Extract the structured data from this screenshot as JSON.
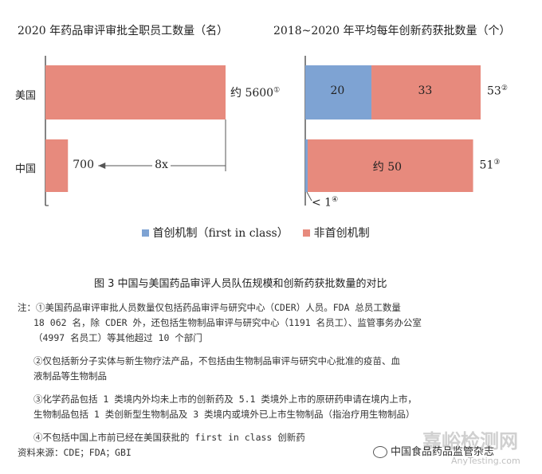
{
  "colors": {
    "blue": "#7ea3d3",
    "pink": "#e78a7d",
    "axis": "#333333"
  },
  "chart_data": [
    {
      "type": "bar",
      "orientation": "horizontal",
      "title": "2020 年药品审评审批全职员工数量（名）",
      "categories": [
        "美国",
        "中国"
      ],
      "values": [
        5600,
        700
      ],
      "value_labels": [
        "约 5600",
        "700"
      ],
      "value_label_notes": [
        "①",
        ""
      ],
      "comparison_label": "8x"
    },
    {
      "type": "bar",
      "orientation": "horizontal",
      "stacked": true,
      "title": "2018~2020 年平均每年创新药获批数量（个）",
      "categories": [
        "美国",
        "中国"
      ],
      "series": [
        {
          "name": "首创机制（first in class）",
          "values": [
            20,
            1
          ],
          "labels": [
            "20",
            "< 1"
          ],
          "label_notes": [
            "",
            "④"
          ]
        },
        {
          "name": "非首创机制",
          "values": [
            33,
            50
          ],
          "labels": [
            "33",
            "约 50"
          ]
        }
      ],
      "totals": [
        "53",
        "51"
      ],
      "total_notes": [
        "②",
        "③"
      ]
    }
  ],
  "caption": "图 3    中国与美国药品审评人员队伍规模和创新药获批数量的对比",
  "notes": {
    "prefix": "注：",
    "n1": [
      "①美国药品审评审批人员数量仅包括药品审评与研究中心（CDER）人员。FDA 总员工数量",
      "18 062 名，除 CDER 外，还包括生物制品审评与研究中心（1191 名员工）、监管事务办公室",
      "（4997 名员工）等其他超过 10 个部门"
    ],
    "n2": [
      "②仅包括新分子实体与新生物疗法产品，不包括由生物制品审评与研究中心批准的疫苗、血",
      "液制品等生物制品"
    ],
    "n3": [
      "③化学药品包括 1 类境内外均未上市的创新药及 5.1 类境外上市的原研药申请在境内上市，",
      "生物制品包括 1 类创新型生物制品及 3 类境内或境外已上市生物制品（指治疗用生物制品）"
    ],
    "n4": "④不包括中国上市前已经在美国获批的 first in class 创新药",
    "source": "资料来源：CDE；FDA；GBI"
  },
  "watermark": {
    "main": "嘉峪检测网",
    "sub": "AnyTesting.com",
    "wechat": "中国食品药品监管杂志"
  }
}
